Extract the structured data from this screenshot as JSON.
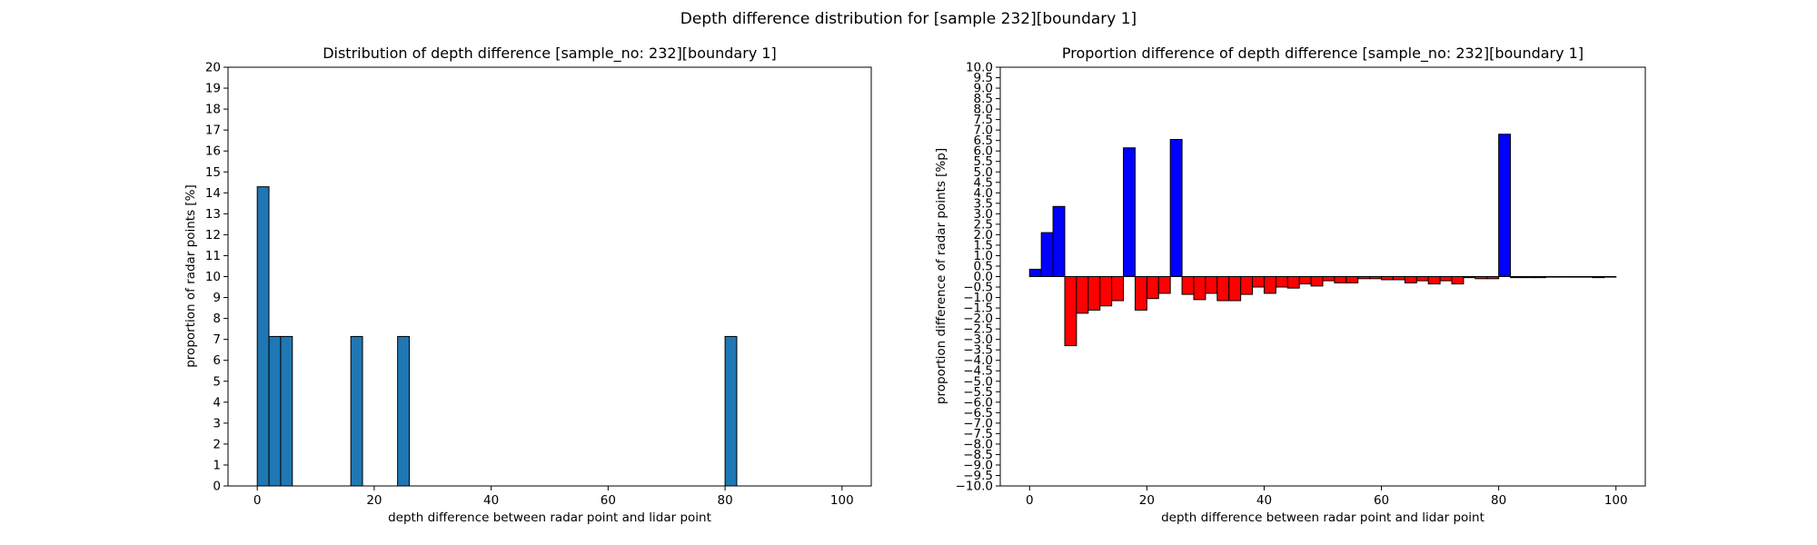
{
  "figure": {
    "title": "Depth difference distribution for [sample 232][boundary 1]"
  },
  "chart_data": [
    {
      "type": "bar",
      "title": "Distribution of depth difference [sample_no: 232][boundary 1]",
      "xlabel": "depth difference between radar point and lidar point",
      "ylabel": "proportion of radar points [%]",
      "xlim": [
        -5,
        105
      ],
      "ylim": [
        0,
        20
      ],
      "xticks": [
        0,
        20,
        40,
        60,
        80,
        100
      ],
      "yticks": [
        0,
        1,
        2,
        3,
        4,
        5,
        6,
        7,
        8,
        9,
        10,
        11,
        12,
        13,
        14,
        15,
        16,
        17,
        18,
        19,
        20
      ],
      "bin_width": 2,
      "bar_color": "#1f77b4",
      "edge_color": "#000000",
      "bins": [
        {
          "x": 0,
          "value": 14.29
        },
        {
          "x": 2,
          "value": 7.14
        },
        {
          "x": 4,
          "value": 7.14
        },
        {
          "x": 16,
          "value": 7.14
        },
        {
          "x": 24,
          "value": 7.14
        },
        {
          "x": 80,
          "value": 7.14
        }
      ]
    },
    {
      "type": "bar",
      "title": "Proportion difference of depth difference [sample_no: 232][boundary 1]",
      "xlabel": "depth difference between radar point and lidar point",
      "ylabel": "proportion difference of radar points [%p]",
      "xlim": [
        -5,
        105
      ],
      "ylim": [
        -10,
        10
      ],
      "xticks": [
        0,
        20,
        40,
        60,
        80,
        100
      ],
      "yticks": [
        "−10.0",
        "−9.5",
        "−9.0",
        "−8.5",
        "−8.0",
        "−7.5",
        "−7.0",
        "−6.5",
        "−6.0",
        "−5.5",
        "−5.0",
        "−4.5",
        "−4.0",
        "−3.5",
        "−3.0",
        "−2.5",
        "−2.0",
        "−1.5",
        "−1.0",
        "−0.5",
        "0.0",
        "0.5",
        "1.0",
        "1.5",
        "2.0",
        "2.5",
        "3.0",
        "3.5",
        "4.0",
        "4.5",
        "5.0",
        "5.5",
        "6.0",
        "6.5",
        "7.0",
        "7.5",
        "8.0",
        "8.5",
        "9.0",
        "9.5",
        "10.0"
      ],
      "bin_width": 2,
      "positive_color": "#0000ff",
      "negative_color": "#ff0000",
      "edge_color": "#000000",
      "bins": [
        {
          "x": 0,
          "value": 0.35
        },
        {
          "x": 2,
          "value": 2.1
        },
        {
          "x": 4,
          "value": 3.35
        },
        {
          "x": 6,
          "value": -3.3
        },
        {
          "x": 8,
          "value": -1.75
        },
        {
          "x": 10,
          "value": -1.6
        },
        {
          "x": 12,
          "value": -1.4
        },
        {
          "x": 14,
          "value": -1.15
        },
        {
          "x": 16,
          "value": 6.15
        },
        {
          "x": 18,
          "value": -1.6
        },
        {
          "x": 20,
          "value": -1.05
        },
        {
          "x": 22,
          "value": -0.8
        },
        {
          "x": 24,
          "value": 6.55
        },
        {
          "x": 26,
          "value": -0.85
        },
        {
          "x": 28,
          "value": -1.1
        },
        {
          "x": 30,
          "value": -0.8
        },
        {
          "x": 32,
          "value": -1.15
        },
        {
          "x": 34,
          "value": -1.15
        },
        {
          "x": 36,
          "value": -0.85
        },
        {
          "x": 38,
          "value": -0.5
        },
        {
          "x": 40,
          "value": -0.8
        },
        {
          "x": 42,
          "value": -0.5
        },
        {
          "x": 44,
          "value": -0.55
        },
        {
          "x": 46,
          "value": -0.35
        },
        {
          "x": 48,
          "value": -0.45
        },
        {
          "x": 50,
          "value": -0.2
        },
        {
          "x": 52,
          "value": -0.3
        },
        {
          "x": 54,
          "value": -0.3
        },
        {
          "x": 56,
          "value": -0.1
        },
        {
          "x": 58,
          "value": -0.1
        },
        {
          "x": 60,
          "value": -0.15
        },
        {
          "x": 62,
          "value": -0.15
        },
        {
          "x": 64,
          "value": -0.3
        },
        {
          "x": 66,
          "value": -0.2
        },
        {
          "x": 68,
          "value": -0.35
        },
        {
          "x": 70,
          "value": -0.2
        },
        {
          "x": 72,
          "value": -0.35
        },
        {
          "x": 74,
          "value": -0.05
        },
        {
          "x": 76,
          "value": -0.1
        },
        {
          "x": 78,
          "value": -0.1
        },
        {
          "x": 80,
          "value": 6.8
        },
        {
          "x": 82,
          "value": -0.05
        },
        {
          "x": 84,
          "value": -0.05
        },
        {
          "x": 86,
          "value": -0.05
        },
        {
          "x": 88,
          "value": -0.02
        },
        {
          "x": 90,
          "value": -0.02
        },
        {
          "x": 92,
          "value": -0.02
        },
        {
          "x": 94,
          "value": -0.02
        },
        {
          "x": 96,
          "value": -0.05
        },
        {
          "x": 98,
          "value": -0.02
        }
      ]
    }
  ]
}
